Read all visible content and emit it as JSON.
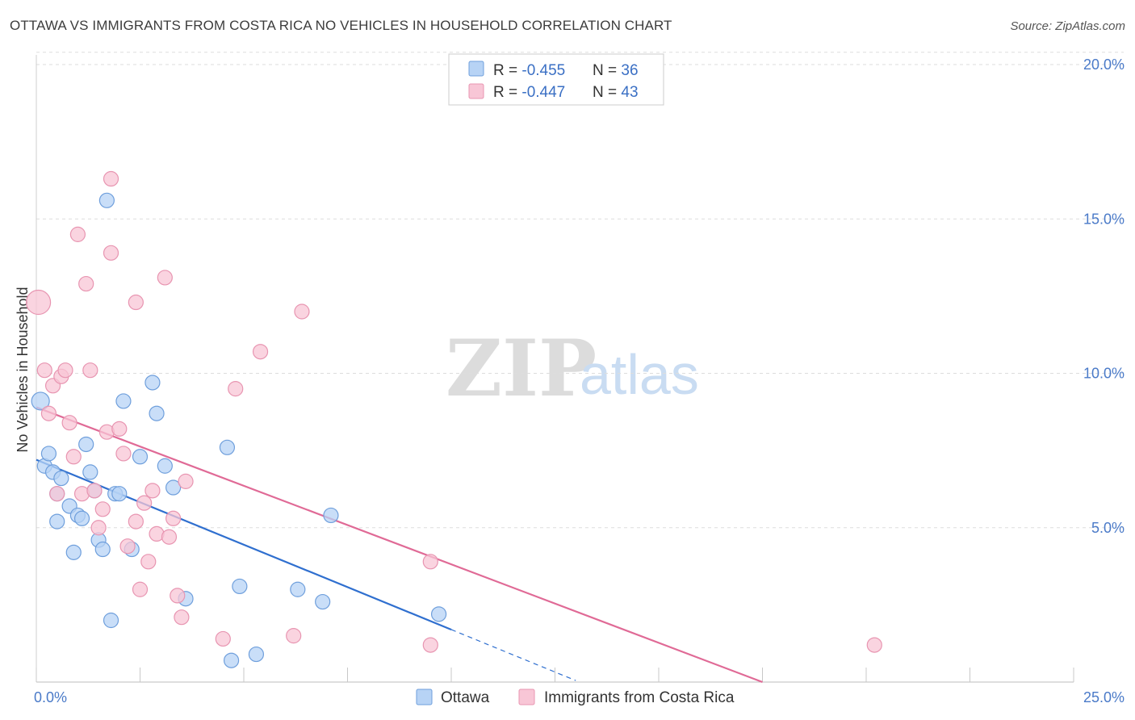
{
  "header": {
    "title": "OTTAWA VS IMMIGRANTS FROM COSTA RICA NO VEHICLES IN HOUSEHOLD CORRELATION CHART",
    "source": "Source: ZipAtlas.com"
  },
  "watermark": {
    "zip": "ZIP",
    "atlas": "atlas"
  },
  "colors": {
    "ottawa_fill": "#b7d3f5",
    "ottawa_stroke": "#6f9fdc",
    "ottawa_line": "#2f6fcf",
    "costa_fill": "#f8c6d6",
    "costa_stroke": "#e895b1",
    "costa_line": "#e06a96",
    "grid": "#dddddd",
    "tick": "#4a7ac8"
  },
  "legend": {
    "rows": [
      {
        "r_label": "R = ",
        "r_value": "-0.455",
        "n_label": "N = ",
        "n_value": "36"
      },
      {
        "r_label": "R = ",
        "r_value": "-0.447",
        "n_label": "N = ",
        "n_value": "43"
      }
    ]
  },
  "bottom_legend": {
    "ottawa": "Ottawa",
    "costa": "Immigrants from Costa Rica"
  },
  "chart_data": {
    "type": "scatter",
    "title": "OTTAWA VS IMMIGRANTS FROM COSTA RICA NO VEHICLES IN HOUSEHOLD CORRELATION CHART",
    "xlabel": "",
    "ylabel": "No Vehicles in Household",
    "xlim": [
      0,
      25
    ],
    "ylim": [
      0,
      20
    ],
    "x_tick_labels": [
      "0.0%",
      "25.0%"
    ],
    "y_tick_labels": [
      "5.0%",
      "10.0%",
      "15.0%",
      "20.0%"
    ],
    "y_ticks": [
      5,
      10,
      15,
      20
    ],
    "series": [
      {
        "name": "Ottawa",
        "points": [
          [
            0.1,
            9.1
          ],
          [
            0.2,
            7.0
          ],
          [
            0.3,
            7.4
          ],
          [
            0.4,
            6.8
          ],
          [
            0.5,
            6.1
          ],
          [
            0.5,
            5.2
          ],
          [
            0.6,
            6.6
          ],
          [
            0.8,
            5.7
          ],
          [
            0.9,
            4.2
          ],
          [
            1.0,
            5.4
          ],
          [
            1.1,
            5.3
          ],
          [
            1.2,
            7.7
          ],
          [
            1.3,
            6.8
          ],
          [
            1.4,
            6.2
          ],
          [
            1.5,
            4.6
          ],
          [
            1.6,
            4.3
          ],
          [
            1.7,
            15.6
          ],
          [
            1.8,
            2.0
          ],
          [
            1.9,
            6.1
          ],
          [
            2.0,
            6.1
          ],
          [
            2.1,
            9.1
          ],
          [
            2.3,
            4.3
          ],
          [
            2.5,
            7.3
          ],
          [
            2.8,
            9.7
          ],
          [
            2.9,
            8.7
          ],
          [
            3.1,
            7.0
          ],
          [
            3.3,
            6.3
          ],
          [
            3.6,
            2.7
          ],
          [
            4.6,
            7.6
          ],
          [
            4.7,
            0.7
          ],
          [
            4.9,
            3.1
          ],
          [
            5.3,
            0.9
          ],
          [
            6.3,
            3.0
          ],
          [
            6.9,
            2.6
          ],
          [
            7.1,
            5.4
          ],
          [
            9.7,
            2.2
          ]
        ]
      },
      {
        "name": "Immigrants from Costa Rica",
        "points": [
          [
            0.05,
            12.3
          ],
          [
            0.2,
            10.1
          ],
          [
            0.3,
            8.7
          ],
          [
            0.4,
            9.6
          ],
          [
            0.5,
            6.1
          ],
          [
            0.6,
            9.9
          ],
          [
            0.7,
            10.1
          ],
          [
            0.8,
            8.4
          ],
          [
            0.9,
            7.3
          ],
          [
            1.0,
            14.5
          ],
          [
            1.1,
            6.1
          ],
          [
            1.2,
            12.9
          ],
          [
            1.3,
            10.1
          ],
          [
            1.4,
            6.2
          ],
          [
            1.5,
            5.0
          ],
          [
            1.6,
            5.6
          ],
          [
            1.7,
            8.1
          ],
          [
            1.8,
            13.9
          ],
          [
            1.8,
            16.3
          ],
          [
            2.0,
            8.2
          ],
          [
            2.1,
            7.4
          ],
          [
            2.2,
            4.4
          ],
          [
            2.4,
            12.3
          ],
          [
            2.4,
            5.2
          ],
          [
            2.5,
            3.0
          ],
          [
            2.6,
            5.8
          ],
          [
            2.7,
            3.9
          ],
          [
            2.8,
            6.2
          ],
          [
            2.9,
            4.8
          ],
          [
            3.1,
            13.1
          ],
          [
            3.2,
            4.7
          ],
          [
            3.3,
            5.3
          ],
          [
            3.4,
            2.8
          ],
          [
            3.5,
            2.1
          ],
          [
            3.6,
            6.5
          ],
          [
            4.5,
            1.4
          ],
          [
            4.8,
            9.5
          ],
          [
            5.4,
            10.7
          ],
          [
            6.2,
            1.5
          ],
          [
            6.4,
            12.0
          ],
          [
            9.5,
            3.9
          ],
          [
            9.5,
            1.2
          ],
          [
            20.2,
            1.2
          ]
        ]
      }
    ],
    "trendlines": [
      {
        "series": "Ottawa",
        "x": [
          0.0,
          10.0
        ],
        "y": [
          7.2,
          1.7
        ],
        "dashed_extension_x": [
          10.0,
          13.0
        ]
      },
      {
        "series": "Immigrants from Costa Rica",
        "x": [
          0.0,
          17.5
        ],
        "y": [
          8.9,
          0.0
        ]
      }
    ]
  }
}
